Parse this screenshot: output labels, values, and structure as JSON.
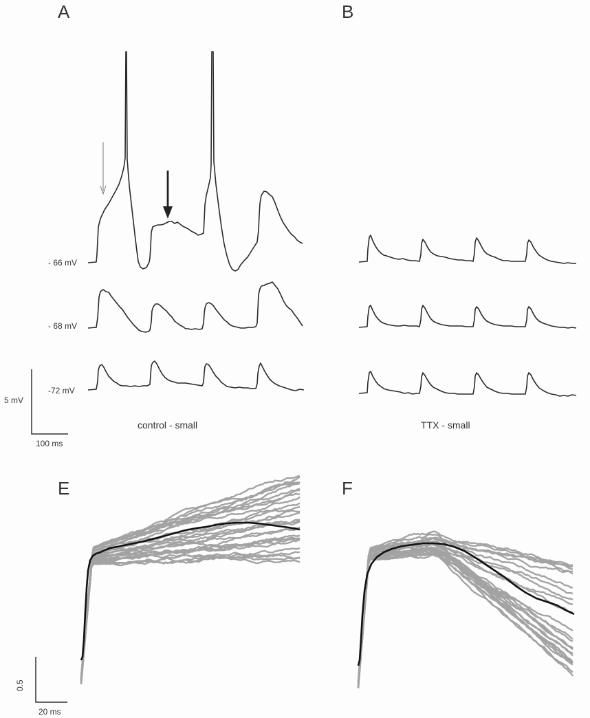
{
  "panels": {
    "A": {
      "letter": "A",
      "caption": "control - small",
      "trace_labels": [
        "- 66 mV",
        "- 68 mV",
        "-72 mV"
      ],
      "scalebar": {
        "vertical": "5 mV",
        "horizontal": "100 ms"
      }
    },
    "B": {
      "letter": "B",
      "caption": "TTX - small"
    },
    "E": {
      "letter": "E",
      "scalebar": {
        "vertical": "0.5",
        "horizontal": "20 ms"
      }
    },
    "F": {
      "letter": "F"
    }
  },
  "colors": {
    "trace": "#2a2a2a",
    "individual_traces": "#a3a3a3",
    "mean_trace": "#111111",
    "axes": "#333333"
  }
}
